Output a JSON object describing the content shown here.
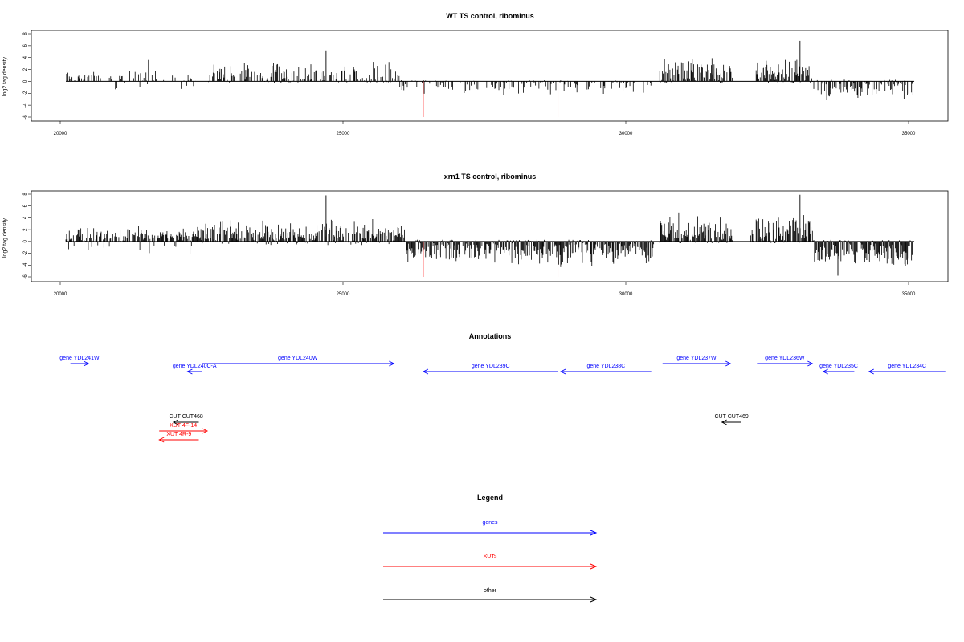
{
  "chart_data": [
    {
      "type": "bar",
      "title": "WT TS control, ribominus",
      "ylabel": "log2 tag density",
      "xlim": [
        20000,
        35000
      ],
      "ylim": [
        -6,
        8
      ],
      "x_ticks": [
        "20000",
        "25000",
        "30000",
        "35000"
      ],
      "y_ticks": [
        "8",
        "6",
        "4",
        "2",
        "0",
        "-2",
        "-4",
        "-6"
      ],
      "red_markers_x": [
        26420,
        28800
      ],
      "profile": {
        "regions": [
          {
            "from": 20100,
            "to": 22400,
            "plus_max": 2.0,
            "minus_max": 1.5,
            "density": 0.35
          },
          {
            "from": 22600,
            "to": 26000,
            "plus_max": 3.5,
            "minus_max": 0.3,
            "density": 0.55
          },
          {
            "from": 26000,
            "to": 30450,
            "plus_max": 0.2,
            "minus_max": 2.5,
            "density": 0.35
          },
          {
            "from": 30600,
            "to": 31900,
            "plus_max": 4.2,
            "minus_max": 0.3,
            "density": 0.8
          },
          {
            "from": 32300,
            "to": 33300,
            "plus_max": 4.0,
            "minus_max": 0.3,
            "density": 0.9
          },
          {
            "from": 33300,
            "to": 35100,
            "plus_max": 0.3,
            "minus_max": 3.5,
            "density": 0.6
          }
        ],
        "spikes": [
          [
            21560,
            3.6
          ],
          [
            24700,
            5.2
          ],
          [
            33080,
            6.8
          ],
          [
            33700,
            -5.0
          ]
        ]
      }
    },
    {
      "type": "bar",
      "title": "xrn1 TS control, ribominus",
      "ylabel": "log2 tag density",
      "xlim": [
        20000,
        35000
      ],
      "ylim": [
        -6,
        8
      ],
      "x_ticks": [
        "20000",
        "25000",
        "30000",
        "35000"
      ],
      "y_ticks": [
        "8",
        "6",
        "4",
        "2",
        "0",
        "-2",
        "-4",
        "-6"
      ],
      "red_markers_x": [
        26420,
        28800
      ],
      "profile": {
        "regions": [
          {
            "from": 20100,
            "to": 22400,
            "plus_max": 2.8,
            "minus_max": 2.2,
            "density": 0.8
          },
          {
            "from": 22400,
            "to": 26100,
            "plus_max": 4.0,
            "minus_max": 0.6,
            "density": 0.9
          },
          {
            "from": 26100,
            "to": 30500,
            "plus_max": 0.3,
            "minus_max": 4.5,
            "density": 0.9
          },
          {
            "from": 30600,
            "to": 31900,
            "plus_max": 5.0,
            "minus_max": 0.3,
            "density": 0.95
          },
          {
            "from": 32200,
            "to": 33300,
            "plus_max": 5.5,
            "minus_max": 0.3,
            "density": 0.95
          },
          {
            "from": 33300,
            "to": 35100,
            "plus_max": 0.3,
            "minus_max": 4.8,
            "density": 0.9
          }
        ],
        "spikes": [
          [
            21570,
            5.2
          ],
          [
            24700,
            7.8
          ],
          [
            33080,
            7.9
          ],
          [
            33750,
            -5.8
          ]
        ]
      }
    }
  ],
  "annotations": {
    "title": "Annotations",
    "features": [
      {
        "label": "gene YDL241W",
        "type": "gene",
        "start": 20180,
        "end": 20500,
        "strand": "+",
        "row": 1
      },
      {
        "label": "gene YDL240C-A",
        "type": "gene",
        "start": 22250,
        "end": 22500,
        "strand": "-",
        "row": 2
      },
      {
        "label": "gene YDL240W",
        "type": "gene",
        "start": 22500,
        "end": 25900,
        "strand": "+",
        "row": 1
      },
      {
        "label": "gene YDL239C",
        "type": "gene",
        "start": 26420,
        "end": 28800,
        "strand": "-",
        "row": 2
      },
      {
        "label": "gene YDL238C",
        "type": "gene",
        "start": 28850,
        "end": 30450,
        "strand": "-",
        "row": 2
      },
      {
        "label": "gene YDL237W",
        "type": "gene",
        "start": 30650,
        "end": 31850,
        "strand": "+",
        "row": 1
      },
      {
        "label": "gene YDL236W",
        "type": "gene",
        "start": 32320,
        "end": 33300,
        "strand": "+",
        "row": 1
      },
      {
        "label": "gene YDL235C",
        "type": "gene",
        "start": 33490,
        "end": 34040,
        "strand": "-",
        "row": 2
      },
      {
        "label": "gene YDL234C",
        "type": "gene",
        "start": 34300,
        "end": 35650,
        "strand": "-",
        "row": 2
      },
      {
        "label": "CUT CUT468",
        "type": "other",
        "start": 22000,
        "end": 22450,
        "strand": "-",
        "row": 3
      },
      {
        "label": "XUT 4F-14",
        "type": "xut",
        "start": 21750,
        "end": 22600,
        "strand": "+",
        "row": 4
      },
      {
        "label": "XUT 4R-9",
        "type": "xut",
        "start": 21750,
        "end": 22450,
        "strand": "-",
        "row": 5
      },
      {
        "label": "CUT CUT469",
        "type": "other",
        "start": 31700,
        "end": 32040,
        "strand": "-",
        "row": 3
      }
    ]
  },
  "legend": {
    "title": "Legend",
    "items": [
      {
        "label": "genes",
        "color": "#0000ff"
      },
      {
        "label": "XUTs",
        "color": "#ff0000"
      },
      {
        "label": "other",
        "color": "#000000"
      }
    ]
  },
  "colors": {
    "gene": "#0000ff",
    "xut": "#ff0000",
    "other": "#000000",
    "marker": "#ff6060"
  }
}
